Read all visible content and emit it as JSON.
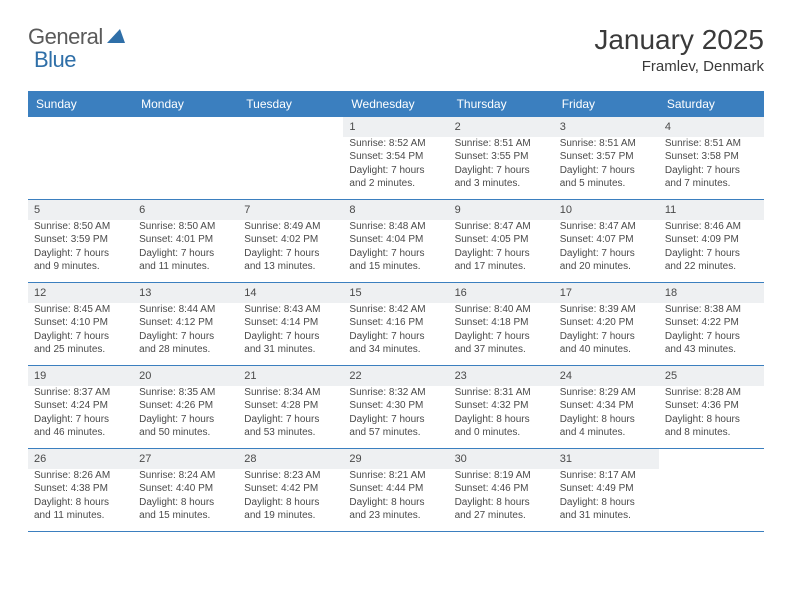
{
  "colors": {
    "brand_blue": "#3b7fbf",
    "header_band": "#3b7fbf",
    "daynum_bg": "#eef0f2",
    "week_border": "#3b7fbf",
    "text": "#3a3a3a"
  },
  "logo": {
    "part1": "General",
    "part2": "Blue"
  },
  "title": "January 2025",
  "location": "Framlev, Denmark",
  "day_names": [
    "Sunday",
    "Monday",
    "Tuesday",
    "Wednesday",
    "Thursday",
    "Friday",
    "Saturday"
  ],
  "weeks": [
    [
      {
        "n": "",
        "l1": "",
        "l2": "",
        "l3": "",
        "l4": "",
        "empty": true
      },
      {
        "n": "",
        "l1": "",
        "l2": "",
        "l3": "",
        "l4": "",
        "empty": true
      },
      {
        "n": "",
        "l1": "",
        "l2": "",
        "l3": "",
        "l4": "",
        "empty": true
      },
      {
        "n": "1",
        "l1": "Sunrise: 8:52 AM",
        "l2": "Sunset: 3:54 PM",
        "l3": "Daylight: 7 hours",
        "l4": "and 2 minutes."
      },
      {
        "n": "2",
        "l1": "Sunrise: 8:51 AM",
        "l2": "Sunset: 3:55 PM",
        "l3": "Daylight: 7 hours",
        "l4": "and 3 minutes."
      },
      {
        "n": "3",
        "l1": "Sunrise: 8:51 AM",
        "l2": "Sunset: 3:57 PM",
        "l3": "Daylight: 7 hours",
        "l4": "and 5 minutes."
      },
      {
        "n": "4",
        "l1": "Sunrise: 8:51 AM",
        "l2": "Sunset: 3:58 PM",
        "l3": "Daylight: 7 hours",
        "l4": "and 7 minutes."
      }
    ],
    [
      {
        "n": "5",
        "l1": "Sunrise: 8:50 AM",
        "l2": "Sunset: 3:59 PM",
        "l3": "Daylight: 7 hours",
        "l4": "and 9 minutes."
      },
      {
        "n": "6",
        "l1": "Sunrise: 8:50 AM",
        "l2": "Sunset: 4:01 PM",
        "l3": "Daylight: 7 hours",
        "l4": "and 11 minutes."
      },
      {
        "n": "7",
        "l1": "Sunrise: 8:49 AM",
        "l2": "Sunset: 4:02 PM",
        "l3": "Daylight: 7 hours",
        "l4": "and 13 minutes."
      },
      {
        "n": "8",
        "l1": "Sunrise: 8:48 AM",
        "l2": "Sunset: 4:04 PM",
        "l3": "Daylight: 7 hours",
        "l4": "and 15 minutes."
      },
      {
        "n": "9",
        "l1": "Sunrise: 8:47 AM",
        "l2": "Sunset: 4:05 PM",
        "l3": "Daylight: 7 hours",
        "l4": "and 17 minutes."
      },
      {
        "n": "10",
        "l1": "Sunrise: 8:47 AM",
        "l2": "Sunset: 4:07 PM",
        "l3": "Daylight: 7 hours",
        "l4": "and 20 minutes."
      },
      {
        "n": "11",
        "l1": "Sunrise: 8:46 AM",
        "l2": "Sunset: 4:09 PM",
        "l3": "Daylight: 7 hours",
        "l4": "and 22 minutes."
      }
    ],
    [
      {
        "n": "12",
        "l1": "Sunrise: 8:45 AM",
        "l2": "Sunset: 4:10 PM",
        "l3": "Daylight: 7 hours",
        "l4": "and 25 minutes."
      },
      {
        "n": "13",
        "l1": "Sunrise: 8:44 AM",
        "l2": "Sunset: 4:12 PM",
        "l3": "Daylight: 7 hours",
        "l4": "and 28 minutes."
      },
      {
        "n": "14",
        "l1": "Sunrise: 8:43 AM",
        "l2": "Sunset: 4:14 PM",
        "l3": "Daylight: 7 hours",
        "l4": "and 31 minutes."
      },
      {
        "n": "15",
        "l1": "Sunrise: 8:42 AM",
        "l2": "Sunset: 4:16 PM",
        "l3": "Daylight: 7 hours",
        "l4": "and 34 minutes."
      },
      {
        "n": "16",
        "l1": "Sunrise: 8:40 AM",
        "l2": "Sunset: 4:18 PM",
        "l3": "Daylight: 7 hours",
        "l4": "and 37 minutes."
      },
      {
        "n": "17",
        "l1": "Sunrise: 8:39 AM",
        "l2": "Sunset: 4:20 PM",
        "l3": "Daylight: 7 hours",
        "l4": "and 40 minutes."
      },
      {
        "n": "18",
        "l1": "Sunrise: 8:38 AM",
        "l2": "Sunset: 4:22 PM",
        "l3": "Daylight: 7 hours",
        "l4": "and 43 minutes."
      }
    ],
    [
      {
        "n": "19",
        "l1": "Sunrise: 8:37 AM",
        "l2": "Sunset: 4:24 PM",
        "l3": "Daylight: 7 hours",
        "l4": "and 46 minutes."
      },
      {
        "n": "20",
        "l1": "Sunrise: 8:35 AM",
        "l2": "Sunset: 4:26 PM",
        "l3": "Daylight: 7 hours",
        "l4": "and 50 minutes."
      },
      {
        "n": "21",
        "l1": "Sunrise: 8:34 AM",
        "l2": "Sunset: 4:28 PM",
        "l3": "Daylight: 7 hours",
        "l4": "and 53 minutes."
      },
      {
        "n": "22",
        "l1": "Sunrise: 8:32 AM",
        "l2": "Sunset: 4:30 PM",
        "l3": "Daylight: 7 hours",
        "l4": "and 57 minutes."
      },
      {
        "n": "23",
        "l1": "Sunrise: 8:31 AM",
        "l2": "Sunset: 4:32 PM",
        "l3": "Daylight: 8 hours",
        "l4": "and 0 minutes."
      },
      {
        "n": "24",
        "l1": "Sunrise: 8:29 AM",
        "l2": "Sunset: 4:34 PM",
        "l3": "Daylight: 8 hours",
        "l4": "and 4 minutes."
      },
      {
        "n": "25",
        "l1": "Sunrise: 8:28 AM",
        "l2": "Sunset: 4:36 PM",
        "l3": "Daylight: 8 hours",
        "l4": "and 8 minutes."
      }
    ],
    [
      {
        "n": "26",
        "l1": "Sunrise: 8:26 AM",
        "l2": "Sunset: 4:38 PM",
        "l3": "Daylight: 8 hours",
        "l4": "and 11 minutes."
      },
      {
        "n": "27",
        "l1": "Sunrise: 8:24 AM",
        "l2": "Sunset: 4:40 PM",
        "l3": "Daylight: 8 hours",
        "l4": "and 15 minutes."
      },
      {
        "n": "28",
        "l1": "Sunrise: 8:23 AM",
        "l2": "Sunset: 4:42 PM",
        "l3": "Daylight: 8 hours",
        "l4": "and 19 minutes."
      },
      {
        "n": "29",
        "l1": "Sunrise: 8:21 AM",
        "l2": "Sunset: 4:44 PM",
        "l3": "Daylight: 8 hours",
        "l4": "and 23 minutes."
      },
      {
        "n": "30",
        "l1": "Sunrise: 8:19 AM",
        "l2": "Sunset: 4:46 PM",
        "l3": "Daylight: 8 hours",
        "l4": "and 27 minutes."
      },
      {
        "n": "31",
        "l1": "Sunrise: 8:17 AM",
        "l2": "Sunset: 4:49 PM",
        "l3": "Daylight: 8 hours",
        "l4": "and 31 minutes."
      },
      {
        "n": "",
        "l1": "",
        "l2": "",
        "l3": "",
        "l4": "",
        "empty": true
      }
    ]
  ]
}
